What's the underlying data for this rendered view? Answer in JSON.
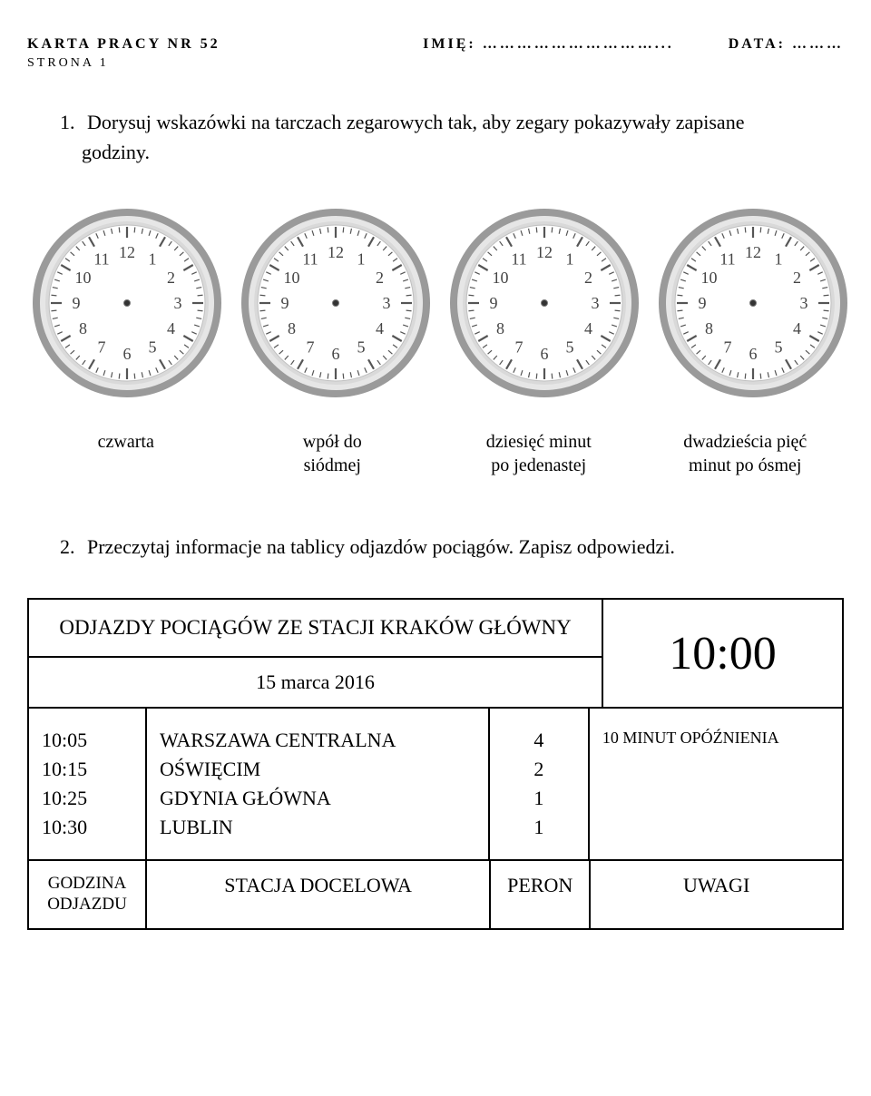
{
  "header": {
    "left": "KARTA PRACY NR 52",
    "imie_label": "IMIĘ: …………………………...",
    "data_label": "DATA: ………",
    "strona": "STRONA 1"
  },
  "task1": {
    "num": "1.",
    "text": "Dorysuj wskazówki na tarczach zegarowych tak, aby zegary pokazywały zapisane godziny."
  },
  "clockLabels": [
    "czwarta",
    "wpół do\nsiódmej",
    "dziesięć minut\npo jedenastej",
    "dwadzieścia pięć\nminut po ósmej"
  ],
  "task2": {
    "num": "2.",
    "text": "Przeczytaj informacje na tablicy odjazdów pociągów. Zapisz odpowiedzi."
  },
  "board": {
    "title": "ODJAZDY POCIĄGÓW ZE STACJI KRAKÓW GŁÓWNY",
    "date": "15 marca 2016",
    "now": "10:00",
    "rows": [
      {
        "time": "10:05",
        "dest": "WARSZAWA CENTRALNA",
        "peron": "4",
        "note": ""
      },
      {
        "time": "10:15",
        "dest": "OŚWIĘCIM",
        "peron": "2",
        "note": ""
      },
      {
        "time": "10:25",
        "dest": "GDYNIA GŁÓWNA",
        "peron": "1",
        "note": "10 MINUT OPÓŹNIENIA"
      },
      {
        "time": "10:30",
        "dest": "LUBLIN",
        "peron": "1",
        "note": ""
      }
    ],
    "footer": {
      "time": "GODZINA ODJAZDU",
      "dest": "STACJA DOCELOWA",
      "peron": "PERON",
      "notes": "UWAGI"
    }
  },
  "clockFace": {
    "rim_outer": "#9a9a9a",
    "rim_inner": "#e6e6e6",
    "face": "#ffffff",
    "tick": "#555555",
    "num": "#444444"
  }
}
